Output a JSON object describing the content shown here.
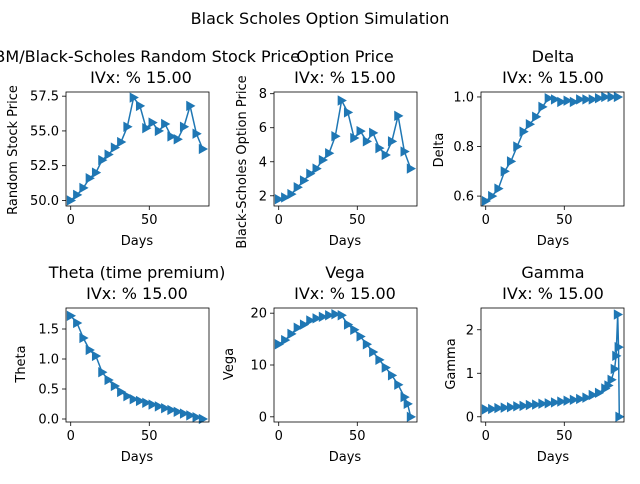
{
  "figure": {
    "suptitle": "Black Scholes Option Simulation"
  },
  "colors": {
    "series": "#1f77b4",
    "axis": "#000000",
    "background": "#ffffff"
  },
  "chart_data": [
    {
      "type": "line",
      "marker": "triangle-right",
      "title_line1": "GBM/Black-Scholes Random Stock Price",
      "title_line2": "IVx: % 15.00",
      "xlabel": "Days",
      "ylabel": "Random Stock Price",
      "xlim": [
        -3,
        88
      ],
      "ylim": [
        49.6,
        57.8
      ],
      "xticks": [
        0,
        50
      ],
      "yticks": [
        50.0,
        52.5,
        55.0,
        57.5
      ],
      "ytick_labels": [
        "50.0",
        "52.5",
        "55.0",
        "57.5"
      ],
      "x": [
        0,
        4,
        8,
        12,
        16,
        20,
        24,
        28,
        32,
        36,
        40,
        44,
        48,
        52,
        56,
        60,
        64,
        68,
        72,
        76,
        80,
        84
      ],
      "y": [
        50.0,
        50.4,
        50.9,
        51.6,
        52.0,
        52.9,
        53.3,
        53.8,
        54.2,
        55.3,
        57.4,
        56.8,
        55.2,
        55.6,
        55.0,
        55.5,
        54.6,
        54.4,
        55.3,
        56.8,
        54.8,
        53.7
      ]
    },
    {
      "type": "line",
      "marker": "triangle-right",
      "title_line1": "Option Price",
      "title_line2": "IVx: % 15.00",
      "xlabel": "Days",
      "ylabel": "Black-Scholes Option Price",
      "xlim": [
        -3,
        88
      ],
      "ylim": [
        1.4,
        8.1
      ],
      "xticks": [
        0,
        50
      ],
      "yticks": [
        2,
        4,
        6,
        8
      ],
      "ytick_labels": [
        "2",
        "4",
        "6",
        "8"
      ],
      "x": [
        0,
        4,
        8,
        12,
        16,
        20,
        24,
        28,
        32,
        36,
        40,
        44,
        48,
        52,
        56,
        60,
        64,
        68,
        72,
        76,
        80,
        84
      ],
      "y": [
        1.8,
        1.9,
        2.1,
        2.5,
        2.9,
        3.3,
        3.6,
        4.1,
        4.5,
        5.5,
        7.6,
        6.9,
        5.4,
        5.8,
        5.2,
        5.7,
        4.8,
        4.4,
        5.2,
        6.7,
        4.6,
        3.6
      ]
    },
    {
      "type": "line",
      "marker": "triangle-right",
      "title_line1": "Delta",
      "title_line2": "IVx: % 15.00",
      "xlabel": "Days",
      "ylabel": "Delta",
      "xlim": [
        -3,
        88
      ],
      "ylim": [
        0.56,
        1.02
      ],
      "xticks": [
        0,
        50
      ],
      "yticks": [
        0.6,
        0.8,
        1.0
      ],
      "ytick_labels": [
        "0.6",
        "0.8",
        "1.0"
      ],
      "x": [
        0,
        4,
        8,
        12,
        16,
        20,
        24,
        28,
        32,
        36,
        40,
        44,
        48,
        52,
        56,
        60,
        64,
        68,
        72,
        76,
        80,
        84
      ],
      "y": [
        0.58,
        0.6,
        0.63,
        0.7,
        0.74,
        0.8,
        0.86,
        0.89,
        0.92,
        0.96,
        0.995,
        0.99,
        0.98,
        0.985,
        0.98,
        0.99,
        0.99,
        0.99,
        0.995,
        1.0,
        1.0,
        1.0
      ]
    },
    {
      "type": "line",
      "marker": "triangle-right",
      "title_line1": "Theta (time premium)",
      "title_line2": "IVx: % 15.00",
      "xlabel": "Days",
      "ylabel": "Theta",
      "xlim": [
        -3,
        88
      ],
      "ylim": [
        -0.05,
        1.85
      ],
      "xticks": [
        0,
        50
      ],
      "yticks": [
        0.0,
        0.5,
        1.0,
        1.5
      ],
      "ytick_labels": [
        "0.0",
        "0.5",
        "1.0",
        "1.5"
      ],
      "x": [
        0,
        4,
        8,
        12,
        16,
        20,
        24,
        28,
        32,
        36,
        40,
        44,
        48,
        52,
        56,
        60,
        64,
        68,
        72,
        76,
        80,
        84
      ],
      "y": [
        1.72,
        1.6,
        1.35,
        1.15,
        1.05,
        0.78,
        0.65,
        0.55,
        0.45,
        0.38,
        0.33,
        0.3,
        0.27,
        0.24,
        0.21,
        0.18,
        0.15,
        0.12,
        0.09,
        0.06,
        0.03,
        0.0
      ]
    },
    {
      "type": "line",
      "marker": "triangle-right",
      "title_line1": "Vega",
      "title_line2": "IVx: % 15.00",
      "xlabel": "Days",
      "ylabel": "Vega",
      "xlim": [
        -3,
        88
      ],
      "ylim": [
        -1.0,
        21.0
      ],
      "xticks": [
        0,
        50
      ],
      "yticks": [
        0,
        10,
        20
      ],
      "ytick_labels": [
        "0",
        "10",
        "20"
      ],
      "x": [
        0,
        4,
        8,
        12,
        16,
        20,
        24,
        28,
        32,
        36,
        40,
        44,
        48,
        52,
        56,
        60,
        64,
        68,
        72,
        76,
        80,
        82,
        84
      ],
      "y": [
        14.0,
        14.8,
        16.0,
        17.2,
        17.8,
        18.6,
        19.0,
        19.3,
        19.6,
        19.8,
        19.6,
        17.8,
        16.8,
        15.5,
        14.0,
        12.5,
        11.0,
        9.5,
        8.0,
        6.2,
        3.8,
        2.5,
        0.0
      ]
    },
    {
      "type": "line",
      "marker": "triangle-right",
      "title_line1": "Gamma",
      "title_line2": "IVx: % 15.00",
      "xlabel": "Days",
      "ylabel": "Gamma",
      "xlim": [
        -3,
        88
      ],
      "ylim": [
        -0.12,
        2.5
      ],
      "xticks": [
        0,
        50
      ],
      "yticks": [
        0,
        1,
        2
      ],
      "ytick_labels": [
        "0",
        "1",
        "2"
      ],
      "x": [
        0,
        4,
        8,
        12,
        16,
        20,
        24,
        28,
        32,
        36,
        40,
        44,
        48,
        52,
        56,
        60,
        64,
        68,
        72,
        76,
        78,
        80,
        82,
        83,
        84,
        84.5,
        85
      ],
      "y": [
        0.17,
        0.18,
        0.2,
        0.21,
        0.22,
        0.24,
        0.25,
        0.27,
        0.28,
        0.3,
        0.31,
        0.33,
        0.35,
        0.37,
        0.39,
        0.41,
        0.44,
        0.5,
        0.55,
        0.65,
        0.72,
        0.85,
        1.1,
        1.4,
        2.35,
        1.6,
        0.0
      ]
    }
  ]
}
